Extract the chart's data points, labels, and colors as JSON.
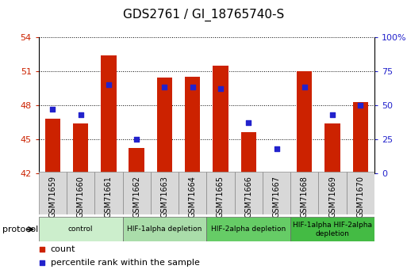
{
  "title": "GDS2761 / GI_18765740-S",
  "samples": [
    "GSM71659",
    "GSM71660",
    "GSM71661",
    "GSM71662",
    "GSM71663",
    "GSM71664",
    "GSM71665",
    "GSM71666",
    "GSM71667",
    "GSM71668",
    "GSM71669",
    "GSM71670"
  ],
  "bar_values": [
    46.8,
    46.4,
    52.4,
    44.2,
    50.4,
    50.5,
    51.5,
    45.6,
    42.1,
    51.0,
    46.4,
    48.3
  ],
  "blue_pct": [
    47,
    43,
    65,
    25,
    63,
    63,
    62,
    37,
    18,
    63,
    43,
    50
  ],
  "ymin": 42,
  "ymax": 54,
  "yticks": [
    42,
    45,
    48,
    51,
    54
  ],
  "right_yticks": [
    0,
    25,
    50,
    75,
    100
  ],
  "right_ylabels": [
    "0",
    "25",
    "50",
    "75",
    "100%"
  ],
  "bar_color": "#cc2200",
  "blue_color": "#2222cc",
  "grid_color": "#000000",
  "protocol_groups": [
    {
      "label": "control",
      "start": 0,
      "end": 2,
      "color": "#cceecc"
    },
    {
      "label": "HIF-1alpha depletion",
      "start": 3,
      "end": 5,
      "color": "#aaddaa"
    },
    {
      "label": "HIF-2alpha depletion",
      "start": 6,
      "end": 8,
      "color": "#66cc66"
    },
    {
      "label": "HIF-1alpha HIF-2alpha\ndepletion",
      "start": 9,
      "end": 11,
      "color": "#44bb44"
    }
  ],
  "xlabel_fontsize": 7,
  "title_fontsize": 11,
  "tick_fontsize": 8,
  "bar_width": 0.55
}
